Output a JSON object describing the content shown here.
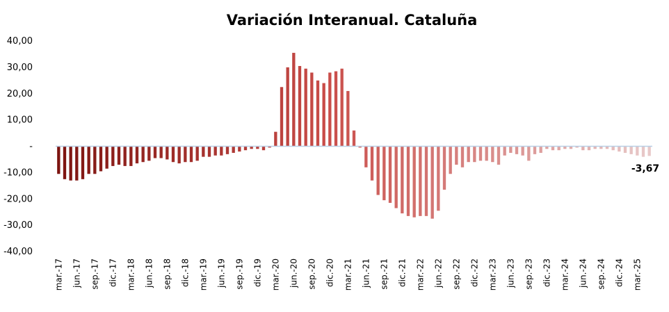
{
  "chart_data": {
    "type": "bar",
    "title": "Variación Interanual. Cataluña",
    "xlabel": "",
    "ylabel": "",
    "ylim": [
      -40,
      40
    ],
    "y_ticks": [
      40,
      30,
      20,
      10,
      0,
      -10,
      -20,
      -30,
      -40
    ],
    "y_tick_labels": [
      "40,00",
      "30,00",
      "20,00",
      "10,00",
      "-",
      "-10,00",
      "-20,00",
      "-30,00",
      "-40,00"
    ],
    "x_tick_labels": [
      "mar.-17",
      "jun.-17",
      "sep.-17",
      "dic.-17",
      "mar.-18",
      "jun.-18",
      "sep.-18",
      "dic.-18",
      "mar.-19",
      "jun.-19",
      "sep.-19",
      "dic.-19",
      "mar.-20",
      "jun.-20",
      "sep.-20",
      "dic.-20",
      "mar.-21",
      "jun.-21",
      "sep.-21",
      "dic.-21",
      "mar.-22",
      "jun.-22",
      "sep.-22",
      "dic.-22",
      "mar.-23",
      "jun.-23",
      "sep.-23",
      "dic.-23",
      "mar.-24",
      "jun.-24",
      "sep.-24",
      "dic.-24",
      "mar.-25"
    ],
    "grid": false,
    "legend": "none",
    "colors": {
      "dark": "#7d1410",
      "mid": "#c94c48",
      "light": "#e8c9c9",
      "zero_line": "#b9cfe6"
    },
    "values": [
      -10.5,
      -12.5,
      -13,
      -13,
      -12.5,
      -10.5,
      -10.5,
      -9.5,
      -8.5,
      -7.5,
      -7,
      -7.5,
      -7.5,
      -6.5,
      -6,
      -5.5,
      -4.5,
      -4.5,
      -5,
      -6,
      -6.5,
      -6,
      -6,
      -5.5,
      -4,
      -4,
      -3.5,
      -3.5,
      -3,
      -2.5,
      -2,
      -1.5,
      -1,
      -1,
      -1.5,
      -0.5,
      5.5,
      22.5,
      30,
      35.5,
      30.5,
      29.5,
      28,
      25,
      24,
      28,
      28.5,
      29.5,
      21,
      6,
      -0.5,
      -8,
      -13,
      -18.5,
      -20.5,
      -21.5,
      -23.5,
      -25.5,
      -26.5,
      -27,
      -26.5,
      -26.5,
      -27.5,
      -24.5,
      -16.5,
      -10.5,
      -7,
      -8,
      -6,
      -6,
      -5.5,
      -5.5,
      -6,
      -7,
      -3.5,
      -2.5,
      -3,
      -3.5,
      -5.5,
      -3,
      -2.5,
      -1,
      -1.5,
      -1.5,
      -1,
      -1,
      -0.5,
      -1.5,
      -1.5,
      -1,
      -1,
      -1,
      -1.5,
      -2,
      -2.5,
      -3,
      -3.5,
      -4,
      -3.67
    ],
    "last_value_label": "-3,67"
  }
}
